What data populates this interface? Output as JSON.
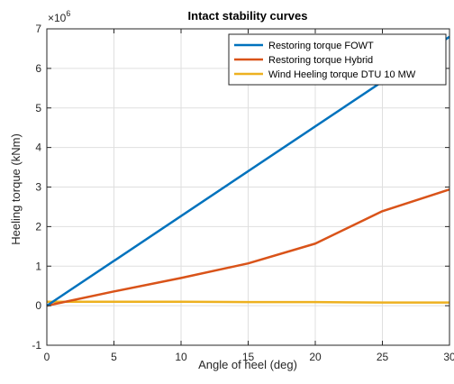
{
  "chart_data": {
    "type": "line",
    "title": "Intact stability curves",
    "xlabel": "Angle of heel (deg)",
    "ylabel": "Heeling torque (kNm)",
    "y_multiplier_label": "×10",
    "y_multiplier_exponent": "6",
    "xlim": [
      0,
      30
    ],
    "ylim": [
      -1,
      7
    ],
    "xticks": [
      0,
      5,
      10,
      15,
      20,
      25,
      30
    ],
    "yticks": [
      -1,
      0,
      1,
      2,
      3,
      4,
      5,
      6,
      7
    ],
    "grid": true,
    "legend_position": "top-right",
    "series": [
      {
        "name": "Restoring torque FOWT",
        "color": "#0072BD",
        "x": [
          0,
          30
        ],
        "y": [
          0,
          6.8
        ]
      },
      {
        "name": "Restoring torque Hybrid",
        "color": "#D95319",
        "x": [
          0,
          5,
          10,
          15,
          20,
          25,
          30
        ],
        "y": [
          0,
          0.36,
          0.7,
          1.07,
          1.57,
          2.39,
          2.94
        ]
      },
      {
        "name": "Wind Heeling torque DTU 10 MW",
        "color": "#EDB120",
        "x": [
          0,
          5,
          10,
          15,
          20,
          25,
          30
        ],
        "y": [
          0.1,
          0.1,
          0.1,
          0.09,
          0.09,
          0.08,
          0.08
        ]
      }
    ]
  }
}
